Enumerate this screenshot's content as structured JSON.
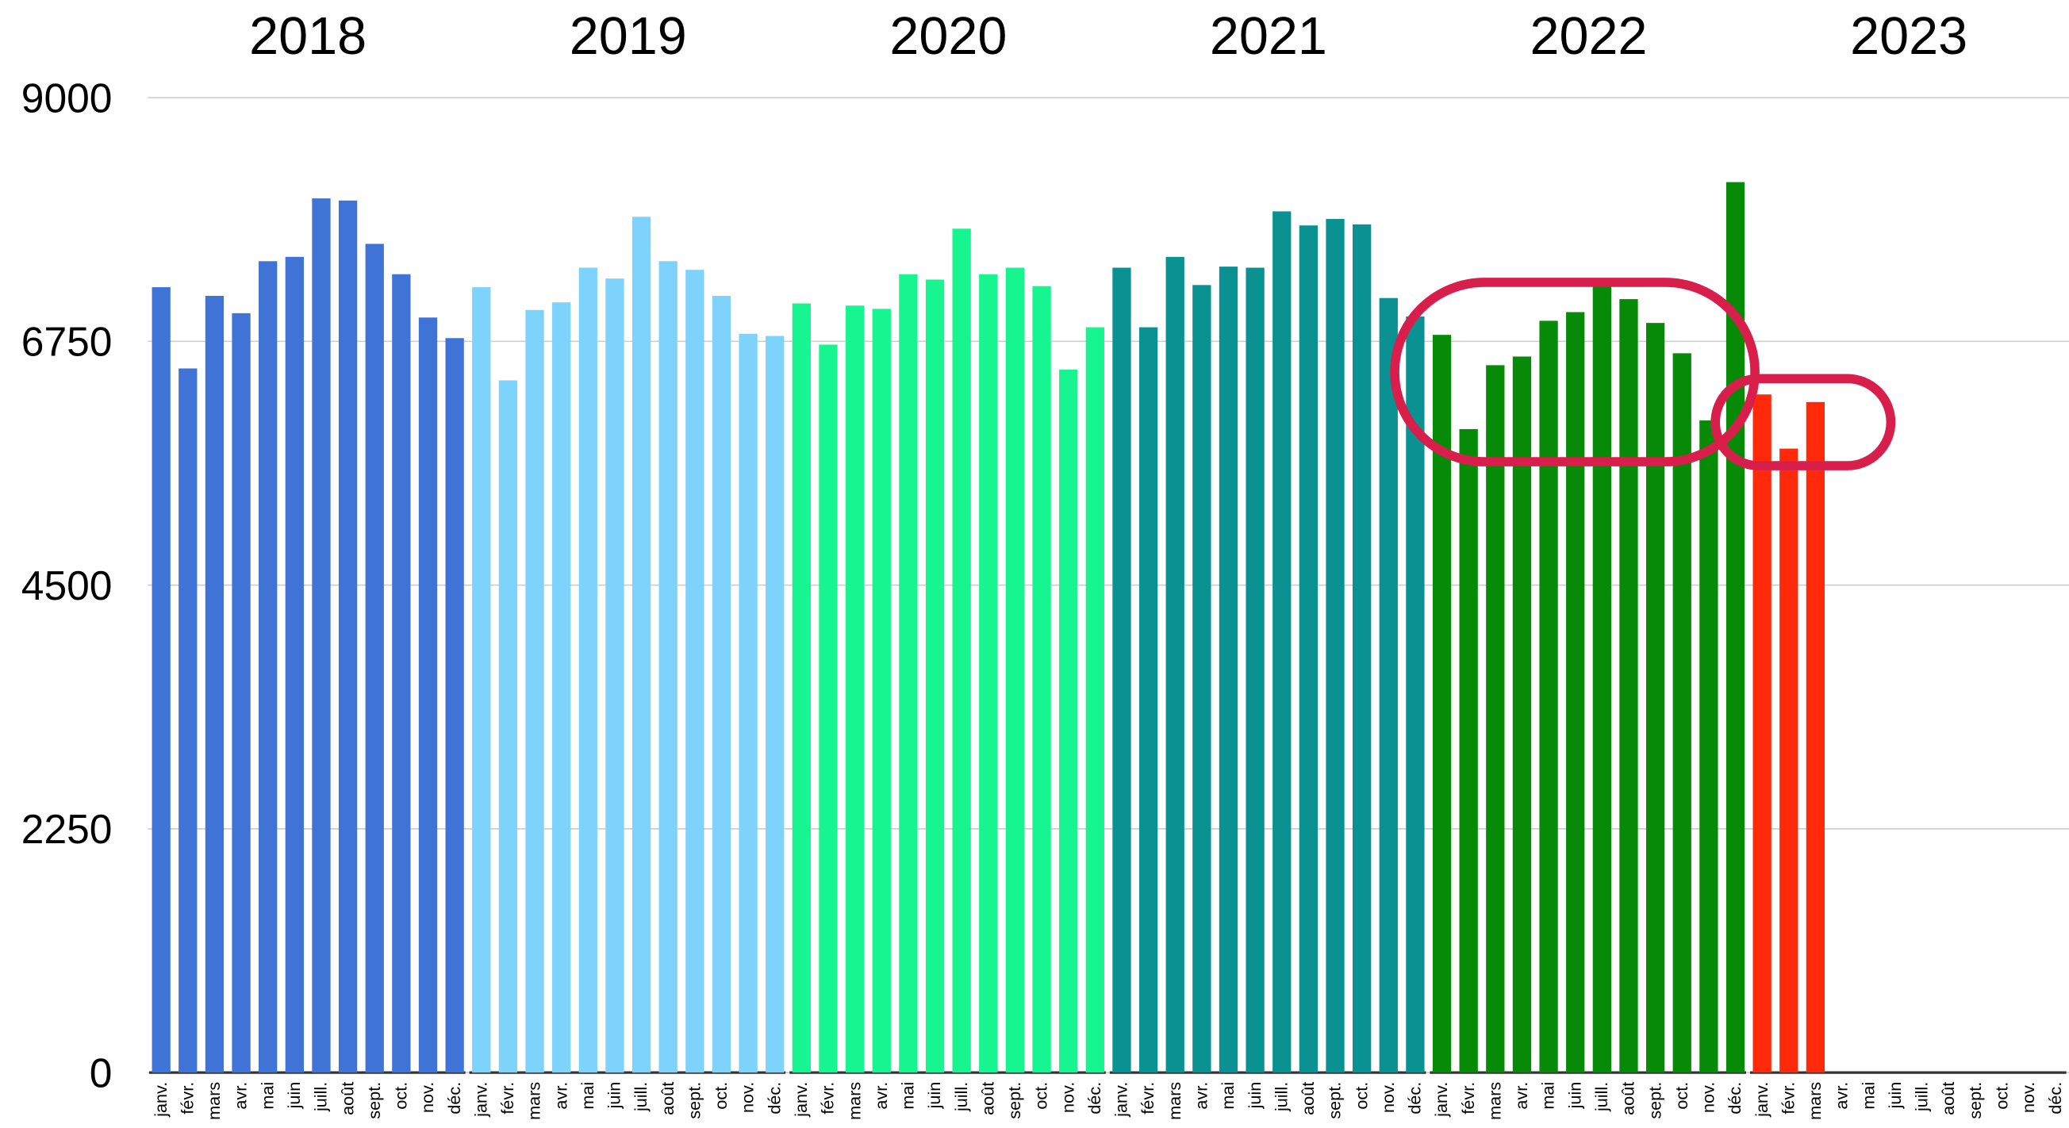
{
  "chart_data": {
    "type": "bar",
    "categories": [
      "janv.",
      "févr.",
      "mars",
      "avr.",
      "mai",
      "juin",
      "juill.",
      "août",
      "sept.",
      "oct.",
      "nov.",
      "déc."
    ],
    "series": [
      {
        "name": "2018",
        "color": "#3f74d6",
        "values": [
          7250,
          6500,
          7170,
          7010,
          7490,
          7530,
          8070,
          8050,
          7650,
          7370,
          6970,
          6780
        ]
      },
      {
        "name": "2019",
        "color": "#7dd3fb",
        "values": [
          7250,
          6390,
          7040,
          7110,
          7430,
          7330,
          7900,
          7490,
          7410,
          7170,
          6820,
          6800
        ]
      },
      {
        "name": "2020",
        "color": "#16f58f",
        "values": [
          7100,
          6720,
          7080,
          7050,
          7370,
          7320,
          7790,
          7370,
          7430,
          7260,
          6490,
          6880
        ]
      },
      {
        "name": "2021",
        "color": "#0a9191",
        "values": [
          7430,
          6880,
          7530,
          7270,
          7440,
          7430,
          7950,
          7820,
          7880,
          7830,
          7150,
          6980
        ]
      },
      {
        "name": "2022",
        "color": "#078a07",
        "values": [
          6810,
          5940,
          6530,
          6610,
          6940,
          7020,
          7260,
          7140,
          6920,
          6640,
          6020,
          8220
        ]
      },
      {
        "name": "2023",
        "color": "#ff2a0a",
        "values": [
          6260,
          5760,
          6190,
          null,
          null,
          null,
          null,
          null,
          null,
          null,
          null,
          null
        ]
      }
    ],
    "ylim": [
      0,
      9000
    ],
    "yticks": [
      0,
      2250,
      4500,
      6750,
      9000
    ],
    "grid": true
  }
}
